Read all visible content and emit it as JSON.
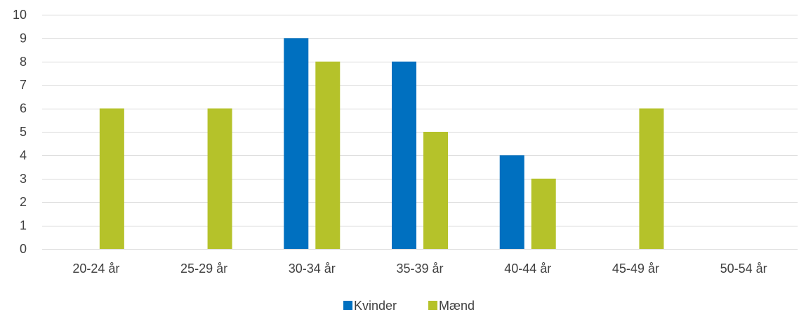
{
  "chart_data": {
    "type": "bar",
    "categories": [
      "20-24 år",
      "25-29 år",
      "30-34 år",
      "35-39 år",
      "40-44 år",
      "45-49 år",
      "50-54 år"
    ],
    "series": [
      {
        "name": "Kvinder",
        "color": "#0070C0",
        "values": [
          0,
          0,
          9,
          8,
          4,
          0,
          0
        ]
      },
      {
        "name": "Mænd",
        "color": "#B5C22A",
        "values": [
          6,
          6,
          8,
          5,
          3,
          6,
          0
        ]
      }
    ],
    "ylim": [
      0,
      10
    ],
    "yticks": [
      0,
      1,
      2,
      3,
      4,
      5,
      6,
      7,
      8,
      9,
      10
    ],
    "grid": true,
    "legend_position": "bottom"
  }
}
